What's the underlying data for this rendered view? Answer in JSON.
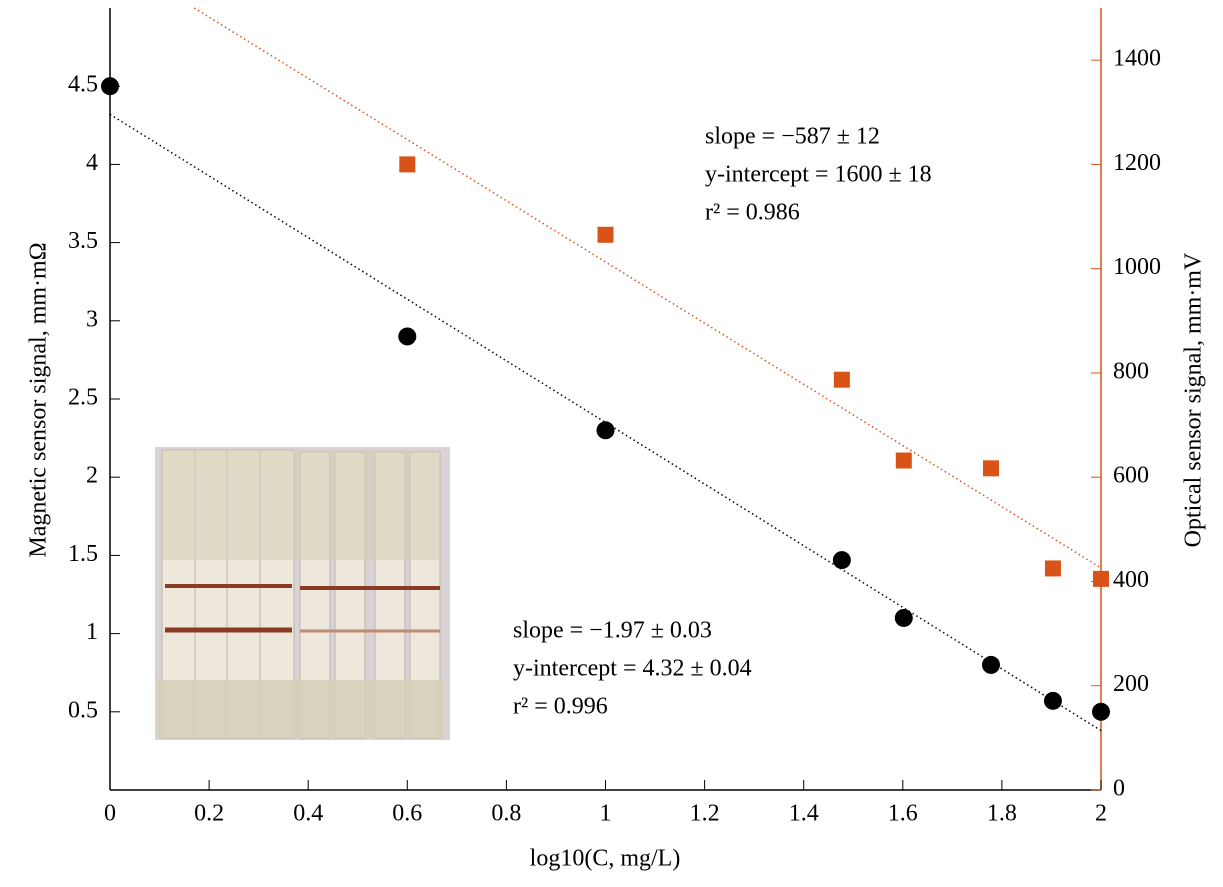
{
  "chart_data": {
    "type": "scatter",
    "x_label": "log10(C, mg/L)",
    "y_label": "Magnetic sensor signal, mm·mΩ",
    "y2_label": "Optical sensor signal, mm·mV",
    "xlim": [
      0,
      2
    ],
    "xticks": [
      0,
      0.2,
      0.4,
      0.6,
      0.8,
      1,
      1.2,
      1.4,
      1.6,
      1.8,
      2
    ],
    "ylim": [
      0,
      5
    ],
    "yticks": [
      0.5,
      1,
      1.5,
      2,
      2.5,
      3,
      3.5,
      4,
      4.5
    ],
    "y2lim": [
      0,
      1500
    ],
    "y2ticks": [
      0,
      200,
      400,
      600,
      800,
      1000,
      1200,
      1400
    ],
    "y2_color": "#d95319",
    "series": [
      {
        "color": "#000000",
        "marker": "circle",
        "x": [
          0,
          0.6,
          1,
          1.477,
          1.602,
          1.778,
          1.903,
          2
        ],
        "values": [
          4.5,
          2.9,
          2.3,
          1.47,
          1.1,
          0.8,
          0.57,
          0.5
        ]
      },
      {
        "color": "#d95319",
        "marker": "square",
        "axis": "y2",
        "x": [
          0.6,
          1,
          1.477,
          1.602,
          1.778,
          1.903,
          2
        ],
        "values": [
          1200,
          1065,
          787,
          632,
          617,
          425,
          405
        ]
      }
    ],
    "fit_lines": [
      {
        "color": "#000000",
        "x": [
          0,
          2
        ],
        "values": [
          4.32,
          0.38
        ]
      },
      {
        "color": "#d95319",
        "axis": "y2",
        "x": [
          0.17,
          2
        ],
        "values": [
          1500,
          426
        ]
      }
    ],
    "annotations": [
      [
        "slope = −587 ± 12",
        "y-intercept = 1600 ± 18",
        "r² = 0.986"
      ],
      [
        "slope = −1.97 ± 0.03",
        "y-intercept = 4.32 ± 0.04",
        "r² = 0.996"
      ]
    ]
  }
}
